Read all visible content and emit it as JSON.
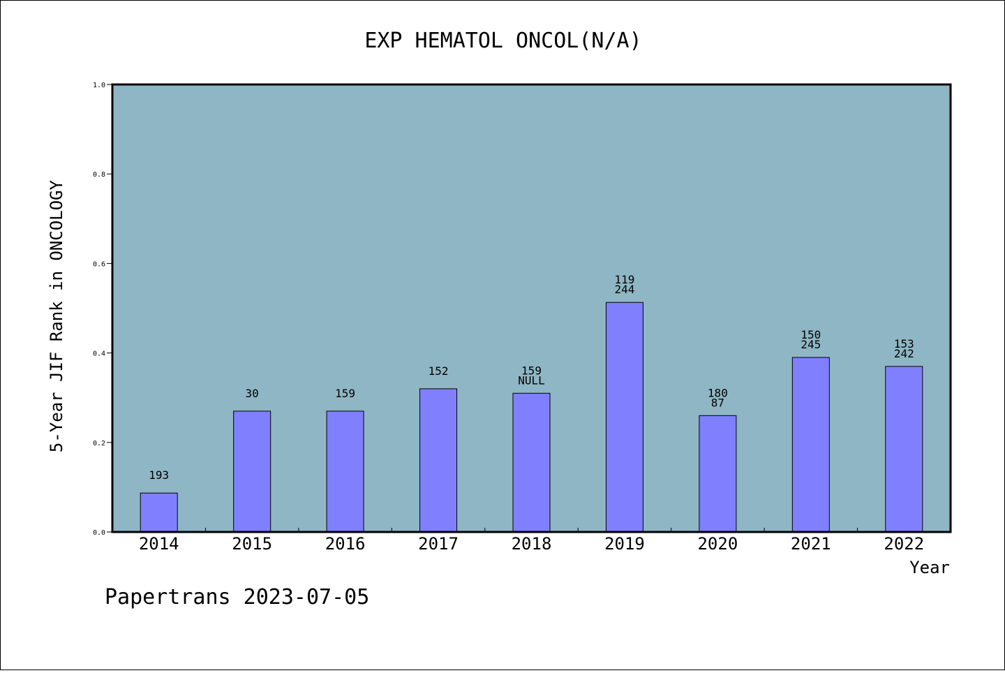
{
  "chart_data": {
    "type": "bar",
    "title": "EXP HEMATOL ONCOL(N/A)",
    "xlabel": "Year",
    "ylabel": "5-Year JIF Rank in ONCOLOGY",
    "ylim": [
      0.0,
      1.0
    ],
    "yticks": [
      "0.0",
      "0.2",
      "0.4",
      "0.6",
      "0.8",
      "1.0"
    ],
    "grid": false,
    "categories": [
      "2014",
      "2015",
      "2016",
      "2017",
      "2018",
      "2019",
      "2020",
      "2021",
      "2022"
    ],
    "values": [
      0.087,
      0.27,
      0.27,
      0.32,
      0.31,
      0.513,
      0.26,
      0.39,
      0.37
    ],
    "bar_labels": [
      [
        "193"
      ],
      [
        "30"
      ],
      [
        "159"
      ],
      [
        "152"
      ],
      [
        "159",
        "NULL"
      ],
      [
        "119",
        "244"
      ],
      [
        "180",
        "87"
      ],
      [
        "150",
        "245"
      ],
      [
        "153",
        "242"
      ]
    ],
    "colors": {
      "plot_background": "#8fb6c4",
      "bar": "#8080ff",
      "bar_edge": "#000000"
    }
  },
  "footer": {
    "watermark": "Papertrans 2023-07-05"
  }
}
